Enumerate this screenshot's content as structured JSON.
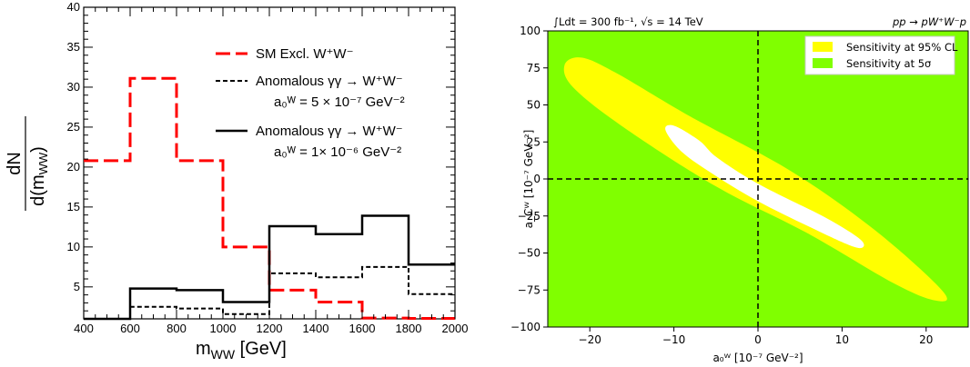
{
  "chart_data": [
    {
      "type": "line",
      "ylabel_num": "dN",
      "ylabel_den": "d(m",
      "ylabel_sub": "WW",
      "ylabel_close": ")",
      "xlabel_main": "m",
      "xlabel_sub": "WW",
      "xlabel_unit": " [GeV]",
      "xlim": [
        400,
        2000
      ],
      "ylim": [
        1,
        40
      ],
      "xticks": [
        "400",
        "600",
        "800",
        "1000",
        "1200",
        "1400",
        "1600",
        "1800",
        "2000"
      ],
      "yticks": [
        "5",
        "10",
        "15",
        "20",
        "25",
        "30",
        "35",
        "40"
      ],
      "bin_edges": [
        400,
        600,
        800,
        1000,
        1200,
        1400,
        1600,
        1800,
        2000
      ],
      "series": [
        {
          "key": "sm",
          "legend": "SM Excl. W⁺W⁻",
          "color": "#ff0000",
          "style": "long-dash",
          "values": [
            20.8,
            31.1,
            20.8,
            10.0,
            4.6,
            3.1,
            1.1,
            1.05
          ]
        },
        {
          "key": "a5",
          "legend": "Anomalous γγ → W⁺W⁻",
          "legend2": "a₀ᵂ = 5 × 10⁻⁷ GeV⁻²",
          "color": "#000000",
          "style": "short-dash",
          "values": [
            1.0,
            2.5,
            2.3,
            1.6,
            6.7,
            6.2,
            7.5,
            4.1
          ]
        },
        {
          "key": "a1",
          "legend": "Anomalous γγ → W⁺W⁻",
          "legend2": "a₀ᵂ = 1× 10⁻⁶ GeV⁻²",
          "color": "#000000",
          "style": "solid",
          "values": [
            1.0,
            4.8,
            4.6,
            3.1,
            12.6,
            11.6,
            13.9,
            7.8
          ]
        }
      ]
    },
    {
      "type": "contour",
      "annotation_left": "∫Ldt = 300 fb⁻¹, √s = 14 TeV",
      "annotation_right": "pp → pW⁺W⁻p",
      "xlabel": "a₀ᵂ [10⁻⁷ GeV⁻²]",
      "ylabel": "a_Cᵂ [10⁻⁷ GeV⁻²]",
      "xlim": [
        -25,
        25
      ],
      "ylim": [
        -100,
        100
      ],
      "xticks": [
        "−20",
        "−10",
        "0",
        "10",
        "20"
      ],
      "yticks": [
        "100",
        "75",
        "50",
        "25",
        "0",
        "−25",
        "−50",
        "−75",
        "−100"
      ],
      "legend": [
        {
          "label": "Sensitivity at 95% CL",
          "color": "#ffff00"
        },
        {
          "label": "Sensitivity at 5σ",
          "color": "#80ff00"
        }
      ],
      "background_color": "#80ff00",
      "regions": [
        {
          "name": "5σ contour",
          "fill": "#ffff00",
          "points": [
            [
              -23,
              77
            ],
            [
              -21,
              82
            ],
            [
              -17,
              72
            ],
            [
              -8,
              42
            ],
            [
              4,
              5
            ],
            [
              14,
              -35
            ],
            [
              22,
              -76
            ],
            [
              21,
              -82
            ],
            [
              16,
              -70
            ],
            [
              6,
              -37
            ],
            [
              -5,
              -5
            ],
            [
              -16,
              35
            ],
            [
              -22,
              62
            ]
          ]
        },
        {
          "name": "95% CL contour",
          "fill": "#ffffff",
          "points": [
            [
              -5,
              15
            ],
            [
              -1,
              0
            ],
            [
              3,
              -12
            ],
            [
              8,
              -26
            ],
            [
              12,
              -40
            ],
            [
              12.5,
              -46
            ],
            [
              11,
              -45
            ],
            [
              6,
              -32
            ],
            [
              0,
              -15
            ],
            [
              -5,
              2
            ],
            [
              -9,
              18
            ],
            [
              -11,
              33
            ],
            [
              -10,
              36
            ],
            [
              -7,
              26
            ]
          ]
        }
      ],
      "crosshair": {
        "x": 0,
        "y": 0
      }
    }
  ]
}
